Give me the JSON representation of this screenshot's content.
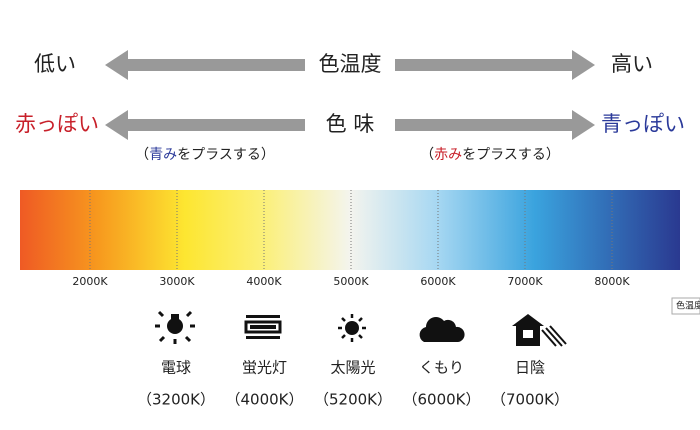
{
  "row1": {
    "left": "低い",
    "center": "色温度",
    "right": "高い"
  },
  "row2": {
    "left": "赤っぽい",
    "center": "色 味",
    "right": "青っぽい"
  },
  "note_left": {
    "open": "（",
    "accent": "青み",
    "rest": "をプラスする）"
  },
  "note_right": {
    "open": "（",
    "accent": "赤み",
    "rest": "をプラスする）"
  },
  "scale": {
    "ticks": [
      "2000K",
      "3000K",
      "4000K",
      "5000K",
      "6000K",
      "7000K",
      "8000K"
    ],
    "tag": "色温度"
  },
  "sources": [
    {
      "label": "電球",
      "temp": "（3200K）"
    },
    {
      "label": "蛍光灯",
      "temp": "（4000K）"
    },
    {
      "label": "太陽光",
      "temp": "（5200K）"
    },
    {
      "label": "くもり",
      "temp": "（6000K）"
    },
    {
      "label": "日陰",
      "temp": "（7000K）"
    }
  ]
}
